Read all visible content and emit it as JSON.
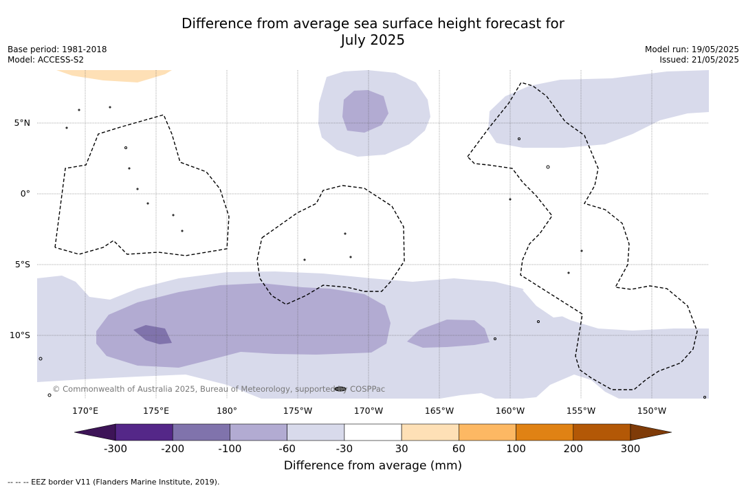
{
  "title_line1": "Difference from average sea surface height forecast for",
  "title_line2": "July 2025",
  "base_period": "Base period: 1981-2018",
  "model": "Model: ACCESS-S2",
  "model_run": "Model run: 19/05/2025",
  "issued": "Issued: 21/05/2025",
  "copyright": "© Commonwealth of Australia 2025, Bureau of Meteorology, supported by COSPPac",
  "eez_legend": "--  --  -- EEZ border V11 (Flanders Marine Institute, 2019).",
  "colorbar": {
    "title": "Difference from average (mm)",
    "ticks": [
      "-300",
      "-200",
      "-100",
      "-60",
      "-30",
      "30",
      "60",
      "100",
      "200",
      "300"
    ],
    "bins": [
      {
        "range": "< -300",
        "color": "#3d1457"
      },
      {
        "range": "-300 to -200",
        "color": "#542788"
      },
      {
        "range": "-200 to -100",
        "color": "#8073ac"
      },
      {
        "range": "-100 to -60",
        "color": "#b2abd2"
      },
      {
        "range": "-60 to -30",
        "color": "#d8daeb"
      },
      {
        "range": "-30 to 30",
        "color": "#ffffff"
      },
      {
        "range": "30 to 60",
        "color": "#fee0b6"
      },
      {
        "range": "60 to 100",
        "color": "#fdb863"
      },
      {
        "range": "100 to 200",
        "color": "#e08214"
      },
      {
        "range": "200 to 300",
        "color": "#b35806"
      },
      {
        "range": "> 300",
        "color": "#7f3b08"
      }
    ]
  },
  "axes": {
    "lon_labels": [
      "170°E",
      "175°E",
      "180°",
      "175°W",
      "170°W",
      "165°W",
      "160°W",
      "155°W",
      "150°W"
    ],
    "lat_labels": [
      "5°N",
      "0°",
      "5°S",
      "10°S"
    ],
    "lon_range": [
      "166.5°E",
      "146°W"
    ],
    "lat_range": [
      "14.5°S",
      "8.7°N"
    ]
  }
}
